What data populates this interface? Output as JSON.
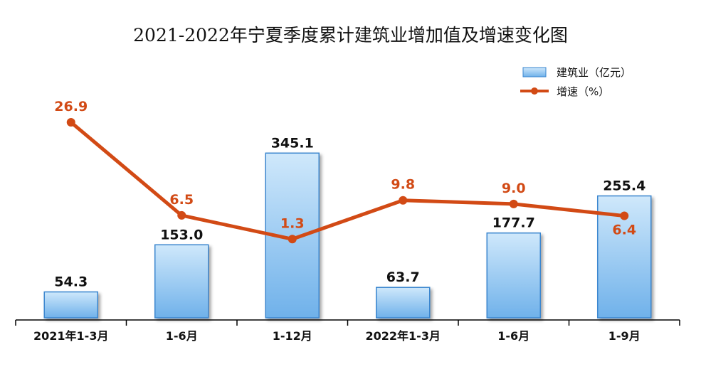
{
  "chart_data": {
    "type": "bar",
    "title": "2021-2022年宁夏季度累计建筑业增加值及增速变化图",
    "categories": [
      "2021年1-3月",
      "1-6月",
      "1-12月",
      "2022年1-3月",
      "1-6月",
      "1-9月"
    ],
    "series": [
      {
        "name": "建筑业（亿元）",
        "type": "bar",
        "values": [
          54.3,
          153.0,
          345.1,
          63.7,
          177.7,
          255.4
        ],
        "labels": [
          "54.3",
          "153.0",
          "345.1",
          "63.7",
          "177.7",
          "255.4"
        ]
      },
      {
        "name": "增速（%）",
        "type": "line",
        "values": [
          26.9,
          6.5,
          1.3,
          9.8,
          9.0,
          6.4
        ],
        "labels": [
          "26.9",
          "6.5",
          "1.3",
          "9.8",
          "9.0",
          "6.4"
        ]
      }
    ],
    "ylim_bar": [
      0,
      420
    ],
    "ylim_line": [
      -20,
      35
    ],
    "legend_position": "top-right",
    "grid": false,
    "colors": {
      "bar_fill_top": "#cfe8fb",
      "bar_fill_bottom": "#6fb1ea",
      "bar_stroke": "#3a86cf",
      "line": "#d24a15",
      "axis": "#000000"
    }
  }
}
